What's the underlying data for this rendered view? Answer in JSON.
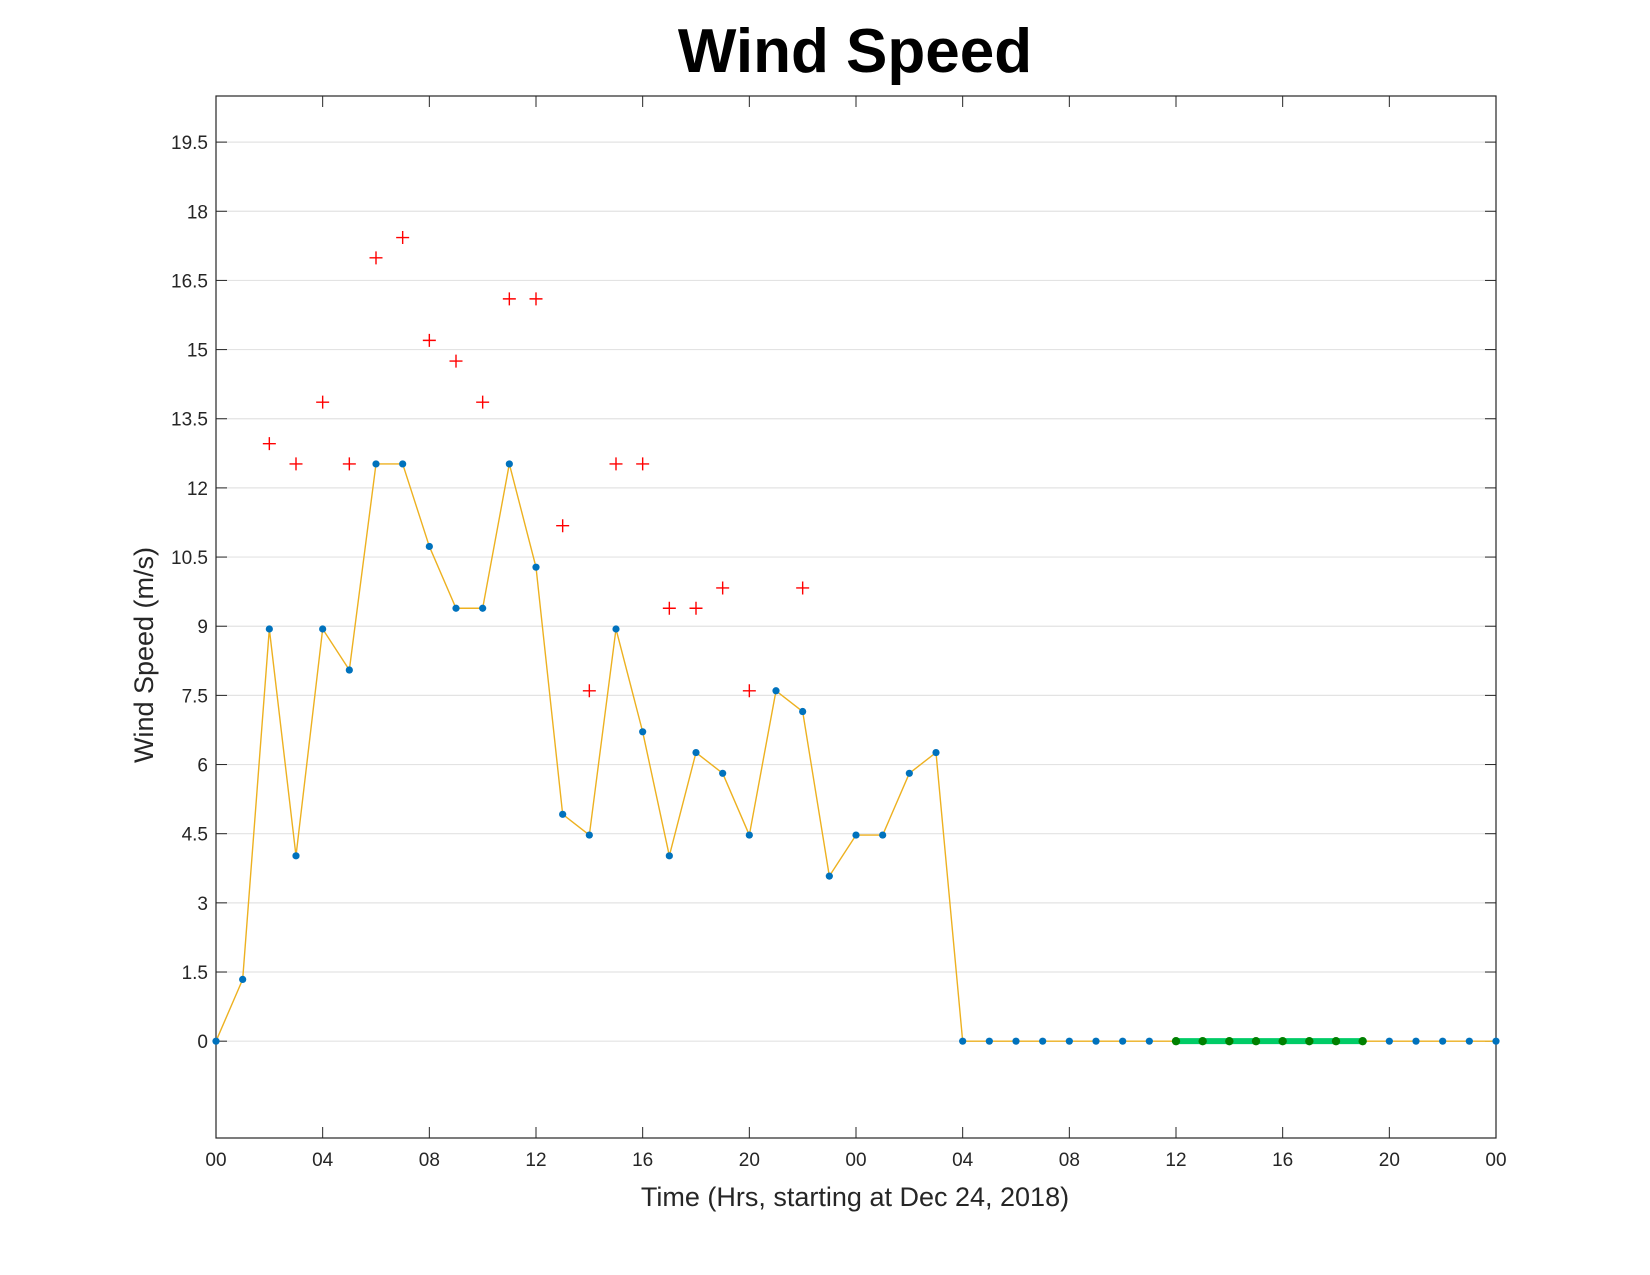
{
  "chart_data": {
    "type": "line",
    "title": "Wind Speed",
    "xlabel": "Time (Hrs, starting at Dec 24, 2018)",
    "ylabel": "Wind Speed (m/s)",
    "x_unit": "hour",
    "xlim": [
      "2018-12-24 00:00",
      "2018-12-26 00:00"
    ],
    "ylim": [
      -2.1,
      20.5
    ],
    "yticks": [
      "0",
      "1.5",
      "3",
      "4.5",
      "6",
      "7.5",
      "9",
      "10.5",
      "12",
      "13.5",
      "15",
      "16.5",
      "18",
      "19.5"
    ],
    "ytick_values": [
      0,
      1.5,
      3,
      4.5,
      6,
      7.5,
      9,
      10.5,
      12,
      13.5,
      15,
      16.5,
      18,
      19.5
    ],
    "xticks": [
      "00",
      "04",
      "08",
      "12",
      "16",
      "20",
      "00",
      "04",
      "08",
      "12",
      "16",
      "20",
      "00"
    ],
    "xtick_values": [
      "2018-12-24 00:00",
      "2018-12-24 04:00",
      "2018-12-24 08:00",
      "2018-12-24 12:00",
      "2018-12-24 16:00",
      "2018-12-24 20:00",
      "2018-12-25 00:00",
      "2018-12-25 04:00",
      "2018-12-25 08:00",
      "2018-12-25 12:00",
      "2018-12-25 16:00",
      "2018-12-25 20:00",
      "2018-12-26 00:00"
    ],
    "grid": "horizontal",
    "legend": "none",
    "series": [
      {
        "style": "line-with-dots",
        "line_color": "#EDB120",
        "marker_color": "#0072BD",
        "x": [
          "2018-12-24 00:00",
          "2018-12-24 01:00",
          "2018-12-24 02:00",
          "2018-12-24 03:00",
          "2018-12-24 04:00",
          "2018-12-24 05:00",
          "2018-12-24 06:00",
          "2018-12-24 07:00",
          "2018-12-24 08:00",
          "2018-12-24 09:00",
          "2018-12-24 10:00",
          "2018-12-24 11:00",
          "2018-12-24 12:00",
          "2018-12-24 13:00",
          "2018-12-24 14:00",
          "2018-12-24 15:00",
          "2018-12-24 16:00",
          "2018-12-24 17:00",
          "2018-12-24 18:00",
          "2018-12-24 19:00",
          "2018-12-24 20:00",
          "2018-12-24 21:00",
          "2018-12-24 22:00",
          "2018-12-24 23:00",
          "2018-12-25 00:00",
          "2018-12-25 01:00",
          "2018-12-25 02:00",
          "2018-12-25 03:00",
          "2018-12-25 04:00",
          "2018-12-25 05:00",
          "2018-12-25 06:00",
          "2018-12-25 07:00",
          "2018-12-25 08:00",
          "2018-12-25 09:00",
          "2018-12-25 10:00",
          "2018-12-25 11:00",
          "2018-12-25 12:00",
          "2018-12-25 13:00",
          "2018-12-25 14:00",
          "2018-12-25 15:00",
          "2018-12-25 16:00",
          "2018-12-25 17:00",
          "2018-12-25 18:00",
          "2018-12-25 19:00",
          "2018-12-25 20:00",
          "2018-12-25 21:00",
          "2018-12-25 22:00",
          "2018-12-25 23:00",
          "2018-12-26 00:00"
        ],
        "values": [
          0,
          1.34,
          8.94,
          4.02,
          8.94,
          8.05,
          12.52,
          12.52,
          10.73,
          9.39,
          9.39,
          12.52,
          10.28,
          4.92,
          4.47,
          8.94,
          6.71,
          4.02,
          6.26,
          5.81,
          4.47,
          7.6,
          7.15,
          3.58,
          4.47,
          4.47,
          5.81,
          6.26,
          0,
          0,
          0,
          0,
          0,
          0,
          0,
          0,
          0,
          0,
          0,
          0,
          0,
          0,
          0,
          0,
          0,
          0,
          0,
          0,
          0
        ]
      },
      {
        "style": "plus-markers",
        "color": "#FF0000",
        "x": [
          "2018-12-24 02:00",
          "2018-12-24 03:00",
          "2018-12-24 04:00",
          "2018-12-24 05:00",
          "2018-12-24 06:00",
          "2018-12-24 07:00",
          "2018-12-24 08:00",
          "2018-12-24 09:00",
          "2018-12-24 10:00",
          "2018-12-24 11:00",
          "2018-12-24 12:00",
          "2018-12-24 13:00",
          "2018-12-24 14:00",
          "2018-12-24 15:00",
          "2018-12-24 16:00",
          "2018-12-24 17:00",
          "2018-12-24 18:00",
          "2018-12-24 19:00",
          "2018-12-24 20:00",
          "2018-12-24 22:00"
        ],
        "values": [
          12.96,
          12.52,
          13.86,
          12.52,
          16.99,
          17.43,
          15.2,
          14.75,
          13.86,
          16.1,
          16.1,
          11.18,
          7.6,
          12.52,
          12.52,
          9.39,
          9.39,
          9.83,
          7.6,
          9.83
        ]
      },
      {
        "style": "thick-line-with-dots",
        "line_color": "#00CC66",
        "marker_color": "#008000",
        "x": [
          "2018-12-25 12:00",
          "2018-12-25 13:00",
          "2018-12-25 14:00",
          "2018-12-25 15:00",
          "2018-12-25 16:00",
          "2018-12-25 17:00",
          "2018-12-25 18:00",
          "2018-12-25 19:00"
        ],
        "values": [
          0,
          0,
          0,
          0,
          0,
          0,
          0,
          0
        ]
      }
    ]
  }
}
